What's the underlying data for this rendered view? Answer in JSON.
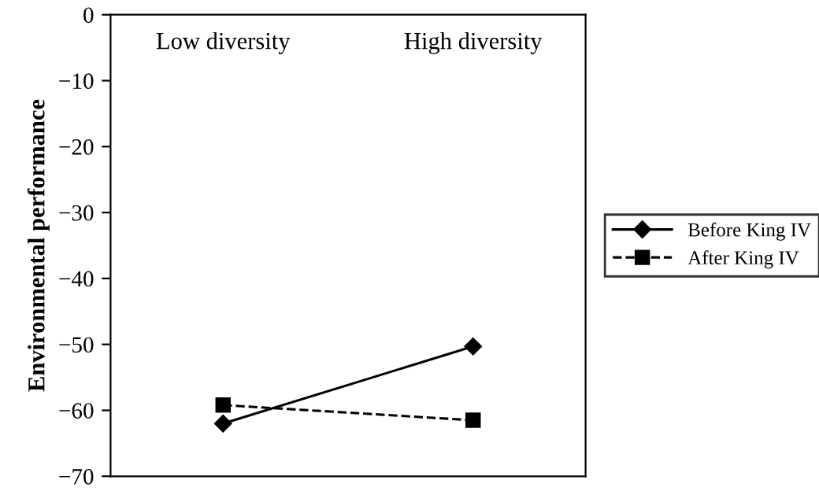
{
  "chart_data": {
    "type": "line",
    "ylabel": "Environmental performance",
    "categories": [
      "Low diversity",
      "High diversity"
    ],
    "series": [
      {
        "name": "Before King IV",
        "color": "#000000",
        "values": [
          -62,
          -50.3
        ],
        "marker": "diamond",
        "line_style": "solid"
      },
      {
        "name": "After King IV",
        "color": "#000000",
        "values": [
          -59.2,
          -61.5
        ],
        "marker": "square",
        "line_style": "dashed"
      }
    ],
    "ylim": [
      -70,
      0
    ],
    "yticks": [
      -70,
      -60,
      -50,
      -40,
      -30,
      -20,
      -10,
      0
    ],
    "grid": false,
    "legend": "right"
  }
}
